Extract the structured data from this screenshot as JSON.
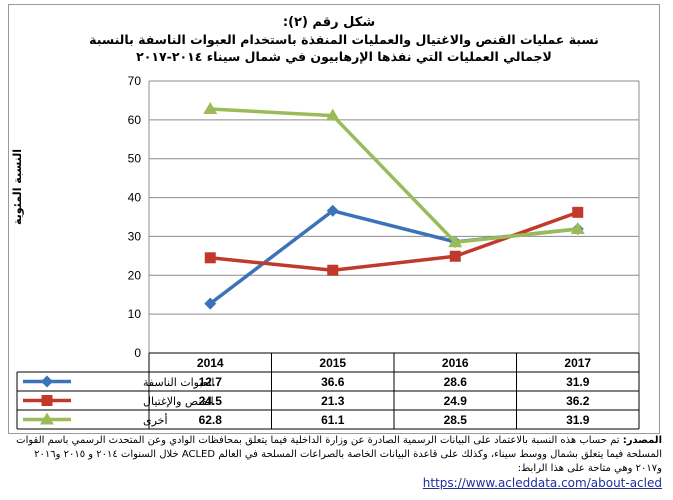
{
  "figure": {
    "number": "شكل رقم (٢):",
    "title_line1": "نسبة عمليات القنص والاغتيال والعمليات المنفذة باستخدام العبوات الناسفة بالنسبة",
    "title_line2": "لاجمالي العمليات التي نفذها الإرهابيون في شمال سيناء ٢٠١٤-٢٠١٧"
  },
  "source": {
    "label": "المصدر:",
    "text": "تم حساب هذه النسبة بالاعتماد على البيانات الرسمية الصادرة عن وزارة الداخلية فيما يتعلق بمحافظات الوادي وعن المتحدث الرسمي باسم القوات المسلحة فيما يتعلق بشمال ووسط سيناء، وكذلك على قاعدة البيانات الخاصة بالصراعات المسلحة في العالم ACLED خلال السنوات ٢٠١٤ و ٢٠١٥ و٢٠١٦ و٢٠١٧ وهي متاحة على هذا الرابط:",
    "url": "https://www.acleddata.com/about-acled"
  },
  "chart_data": {
    "type": "line",
    "title": "",
    "xlabel": "",
    "ylabel": "النسبة المئوية",
    "categories": [
      "2014",
      "2015",
      "2016",
      "2017"
    ],
    "ylim": [
      0,
      70
    ],
    "yticks": [
      "0",
      "10",
      "20",
      "30",
      "40",
      "50",
      "60",
      "70"
    ],
    "grid": true,
    "legend": "table-left",
    "series": [
      {
        "name": "العبوات الناسفة",
        "values": [
          12.7,
          36.6,
          28.6,
          31.9
        ],
        "value_labels": [
          "12.7",
          "36.6",
          "28.6",
          "31.9"
        ],
        "color": "#3b73b9",
        "marker": "diamond"
      },
      {
        "name": "القنص والإغتيال",
        "values": [
          24.5,
          21.3,
          24.9,
          36.2
        ],
        "value_labels": [
          "24.5",
          "21.3",
          "24.9",
          "36.2"
        ],
        "color": "#c0392b",
        "marker": "square"
      },
      {
        "name": "أخرى",
        "values": [
          62.8,
          61.1,
          28.5,
          31.9
        ],
        "value_labels": [
          "62.8",
          "61.1",
          "28.5",
          "31.9"
        ],
        "color": "#9bbb59",
        "marker": "triangle"
      }
    ]
  }
}
